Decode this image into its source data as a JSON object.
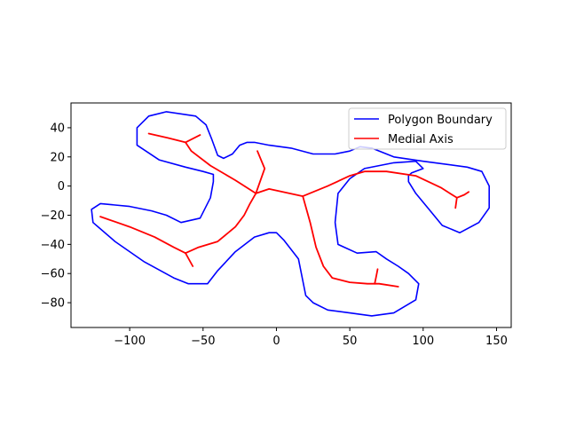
{
  "chart_data": {
    "type": "line",
    "title": "",
    "xlabel": "",
    "ylabel": "",
    "xlim": [
      -140,
      160
    ],
    "ylim": [
      -97,
      57
    ],
    "x_ticks": [
      -100,
      -50,
      0,
      50,
      100,
      150
    ],
    "y_ticks": [
      40,
      20,
      0,
      -20,
      -40,
      -60,
      -80
    ],
    "x_tick_labels": [
      "−100",
      "−50",
      "0",
      "50",
      "100",
      "150"
    ],
    "y_tick_labels": [
      "40",
      "20",
      "0",
      "−20",
      "−40",
      "−60",
      "−80"
    ],
    "grid": false,
    "legend_position": "upper-right",
    "series": [
      {
        "name": "Polygon Boundary",
        "color": "#0000ff",
        "x": [
          -15,
          -5,
          10,
          25,
          40,
          50,
          57,
          65,
          80,
          100,
          130,
          140,
          145,
          145,
          138,
          125,
          113,
          104,
          95,
          90,
          90,
          92,
          100,
          95,
          80,
          70,
          60,
          50,
          42,
          40,
          42,
          55,
          68,
          75,
          83,
          90,
          97,
          95,
          80,
          65,
          50,
          35,
          25,
          20,
          18,
          15,
          5,
          0,
          -5,
          -15,
          -28,
          -40,
          -47,
          -50,
          -60,
          -70,
          -90,
          -110,
          -125,
          -126,
          -120,
          -100,
          -85,
          -75,
          -65,
          -52,
          -45,
          -43,
          -43,
          -50,
          -62,
          -80,
          -95,
          -95,
          -87,
          -75,
          -55,
          -48,
          -44,
          -40,
          -36,
          -30,
          -25,
          -20,
          -15
        ],
        "y": [
          30,
          28,
          26,
          22,
          22,
          24,
          27,
          26,
          20,
          17,
          13,
          10,
          0,
          -15,
          -25,
          -32,
          -27,
          -16,
          -5,
          3,
          7,
          9,
          12,
          17,
          16,
          14,
          12,
          5,
          -5,
          -25,
          -40,
          -46,
          -45,
          -50,
          -55,
          -60,
          -67,
          -78,
          -87,
          -89,
          -87,
          -85,
          -80,
          -75,
          -65,
          -50,
          -37,
          -32,
          -32,
          -35,
          -45,
          -58,
          -67,
          -67,
          -67,
          -63,
          -52,
          -38,
          -25,
          -16,
          -12,
          -14,
          -17,
          -20,
          -25,
          -22,
          -8,
          3,
          8,
          10,
          13,
          18,
          28,
          40,
          48,
          51,
          48,
          42,
          32,
          21,
          19,
          22,
          28,
          30,
          30
        ]
      },
      {
        "name": "Medial Axis",
        "color": "#ff0000",
        "segments": [
          {
            "x": [
              -87,
              -74,
              -62,
              -52
            ],
            "y": [
              36,
              33,
              30,
              35
            ]
          },
          {
            "x": [
              -62,
              -58,
              -45,
              -28,
              -14,
              -5,
              18,
              35,
              50,
              60,
              75,
              95,
              112,
              123,
              128,
              131
            ],
            "y": [
              30,
              24,
              14,
              4,
              -5,
              -2,
              -7,
              0,
              7,
              10,
              10,
              7,
              -1,
              -8,
              -6,
              -4
            ]
          },
          {
            "x": [
              123,
              122
            ],
            "y": [
              -8,
              -15
            ]
          },
          {
            "x": [
              -14,
              -18,
              -22,
              -28,
              -40,
              -53,
              -62
            ],
            "y": [
              -5,
              -12,
              -20,
              -28,
              -38,
              -42,
              -46
            ]
          },
          {
            "x": [
              -14,
              -8,
              -13
            ],
            "y": [
              -5,
              12,
              24
            ]
          },
          {
            "x": [
              -120,
              -100,
              -83,
              -70,
              -62
            ],
            "y": [
              -21,
              -28,
              -35,
              -42,
              -46
            ]
          },
          {
            "x": [
              -62,
              -57
            ],
            "y": [
              -46,
              -55
            ]
          },
          {
            "x": [
              18,
              23,
              27,
              32,
              38,
              50,
              62,
              70,
              83
            ],
            "y": [
              -7,
              -25,
              -42,
              -55,
              -63,
              -66,
              -67,
              -67,
              -69
            ]
          },
          {
            "x": [
              67,
              68,
              69
            ],
            "y": [
              -67,
              -62,
              -57
            ]
          }
        ]
      }
    ]
  }
}
